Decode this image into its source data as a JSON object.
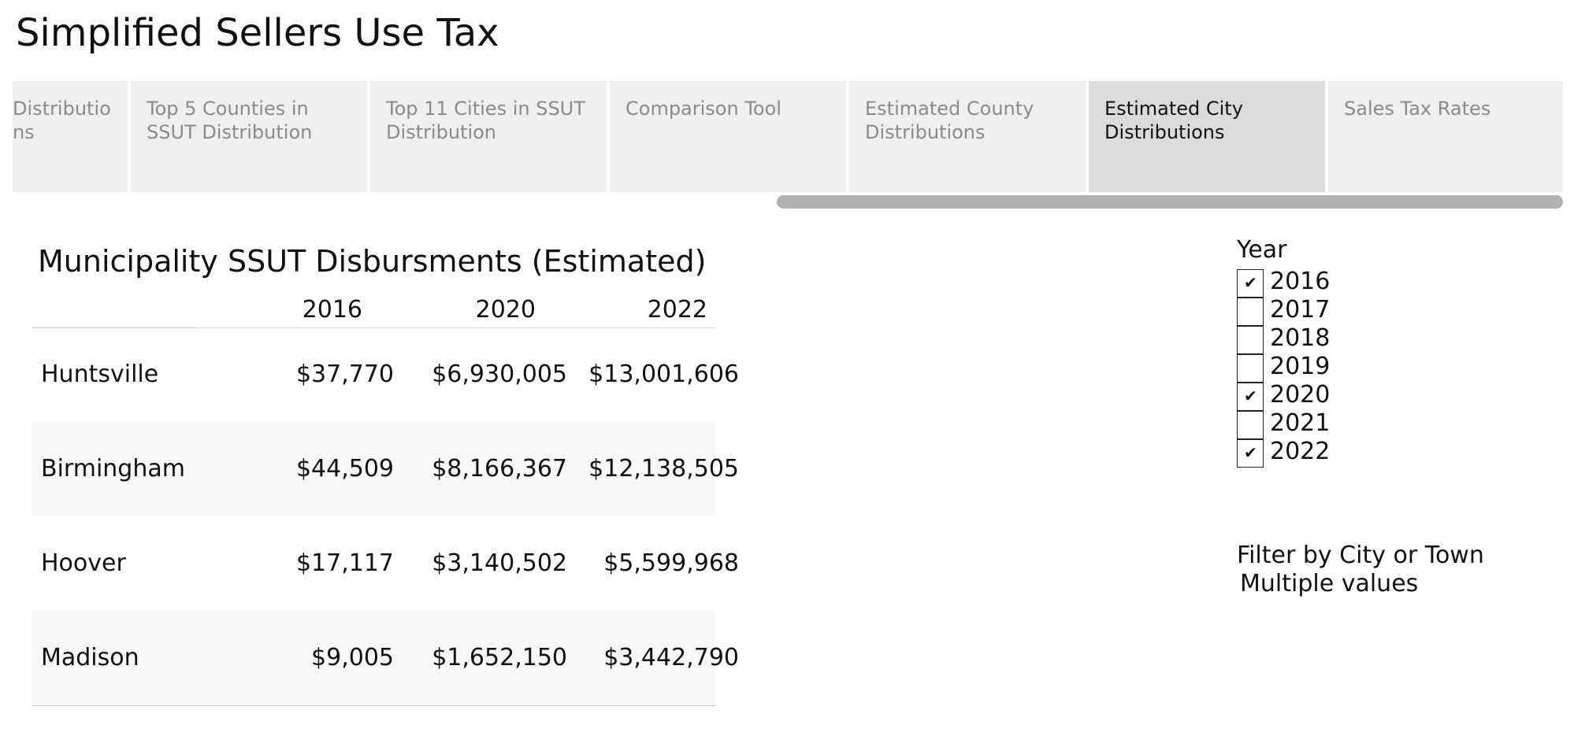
{
  "page": {
    "title": "Simplified Sellers Use Tax"
  },
  "tabs": [
    {
      "label": "Distributions",
      "display": "Distributio\nns",
      "active": false
    },
    {
      "label": "Top 5 Counties in SSUT Distribution",
      "display": "Top 5 Counties in\nSSUT Distribution",
      "active": false
    },
    {
      "label": "Top 11 Cities in SSUT Distribution",
      "display": "Top 11 Cities in SSUT\nDistribution",
      "active": false
    },
    {
      "label": "Comparison Tool",
      "display": "Comparison Tool",
      "active": false
    },
    {
      "label": "Estimated County Distributions",
      "display": "Estimated County\nDistributions",
      "active": false
    },
    {
      "label": "Estimated City Distributions",
      "display": "Estimated City\nDistributions",
      "active": true
    },
    {
      "label": "Sales Tax Rates",
      "display": "Sales Tax Rates",
      "active": false
    }
  ],
  "table": {
    "title": "Municipality SSUT Disbursments (Estimated)",
    "columns": [
      "2016",
      "2020",
      "2022"
    ],
    "rows": [
      {
        "name": "Huntsville",
        "values": [
          "$37,770",
          "$6,930,005",
          "$13,001,606"
        ]
      },
      {
        "name": "Birmingham",
        "values": [
          "$44,509",
          "$8,166,367",
          "$12,138,505"
        ]
      },
      {
        "name": "Hoover",
        "values": [
          "$17,117",
          "$3,140,502",
          "$5,599,968"
        ]
      },
      {
        "name": "Madison",
        "values": [
          "$9,005",
          "$1,652,150",
          "$3,442,790"
        ]
      }
    ]
  },
  "year_filter": {
    "title": "Year",
    "options": [
      {
        "label": "2016",
        "checked": true
      },
      {
        "label": "2017",
        "checked": false
      },
      {
        "label": "2018",
        "checked": false
      },
      {
        "label": "2019",
        "checked": false
      },
      {
        "label": "2020",
        "checked": true
      },
      {
        "label": "2021",
        "checked": false
      },
      {
        "label": "2022",
        "checked": true
      }
    ]
  },
  "city_filter": {
    "title": "Filter by City or Town",
    "value": "Multiple values"
  },
  "icons": {
    "checkbox_checked": "check-icon"
  }
}
